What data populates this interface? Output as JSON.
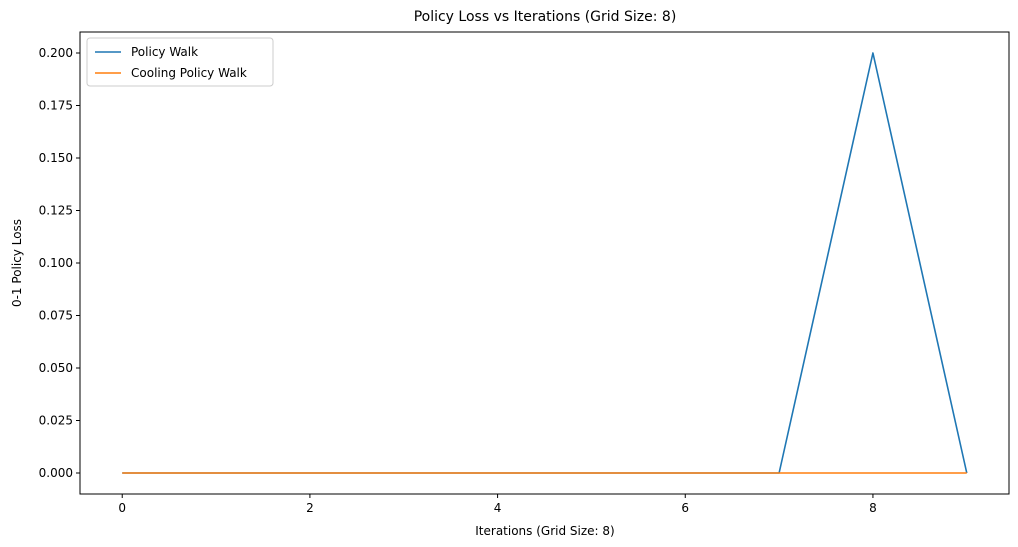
{
  "chart_data": {
    "type": "line",
    "title": "Policy Loss vs Iterations (Grid Size: 8)",
    "xlabel": "Iterations (Grid Size: 8)",
    "ylabel": "0-1 Policy Loss",
    "xlim": [
      -0.45,
      9.45
    ],
    "ylim": [
      -0.01,
      0.21
    ],
    "xticks": [
      0,
      2,
      4,
      6,
      8
    ],
    "xtick_labels": [
      "0",
      "2",
      "4",
      "6",
      "8"
    ],
    "yticks": [
      0.0,
      0.025,
      0.05,
      0.075,
      0.1,
      0.125,
      0.15,
      0.175,
      0.2
    ],
    "ytick_labels": [
      "0.000",
      "0.025",
      "0.050",
      "0.075",
      "0.100",
      "0.125",
      "0.150",
      "0.175",
      "0.200"
    ],
    "grid": false,
    "legend_position": "upper-left",
    "x": [
      0,
      1,
      2,
      3,
      4,
      5,
      6,
      7,
      8,
      9
    ],
    "series": [
      {
        "name": "Policy Walk",
        "color": "#1f77b4",
        "values": [
          0,
          0,
          0,
          0,
          0,
          0,
          0,
          0,
          0.2,
          0
        ]
      },
      {
        "name": "Cooling Policy Walk",
        "color": "#ff7f0e",
        "values": [
          0,
          0,
          0,
          0,
          0,
          0,
          0,
          0,
          0,
          0
        ]
      }
    ]
  }
}
